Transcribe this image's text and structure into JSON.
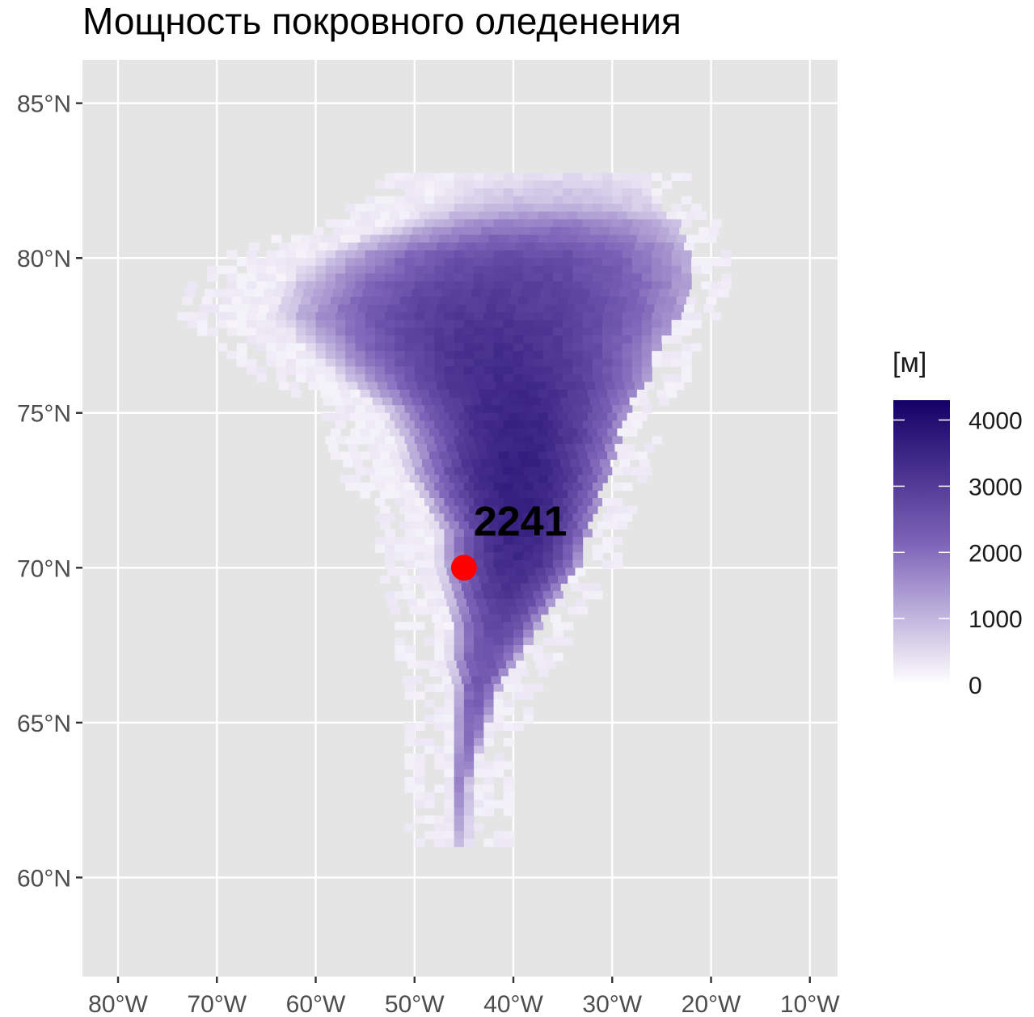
{
  "title": "Мощность покровного оледенения",
  "map": {
    "lon_ticks": [
      "80°W",
      "70°W",
      "60°W",
      "50°W",
      "40°W",
      "30°W",
      "20°W",
      "10°W"
    ],
    "lon_values": [
      -80,
      -70,
      -60,
      -50,
      -40,
      -30,
      -20,
      -10
    ],
    "lat_ticks": [
      "85°N",
      "80°N",
      "75°N",
      "70°N",
      "65°N",
      "60°N"
    ],
    "lat_values": [
      85,
      80,
      75,
      70,
      65,
      60
    ],
    "lon_range": [
      -83.6,
      -7.2
    ],
    "lat_range": [
      56.8,
      86.4
    ],
    "panel_background": "#e5e5e5",
    "grid_color": "#ffffff"
  },
  "ice_sheet": {
    "region": "Greenland",
    "value_unit": "м",
    "max_thickness": 4300
  },
  "point": {
    "label": "2241",
    "lon": -45,
    "lat": 70,
    "color": "#ff0000"
  },
  "legend": {
    "title": "[м]",
    "labels": [
      "4000",
      "3000",
      "2000",
      "1000",
      "0"
    ],
    "values": [
      4000,
      3000,
      2000,
      1000,
      0
    ],
    "min": 0,
    "max": 4300,
    "color_low": "#ffffff",
    "color_high": "#140065"
  }
}
